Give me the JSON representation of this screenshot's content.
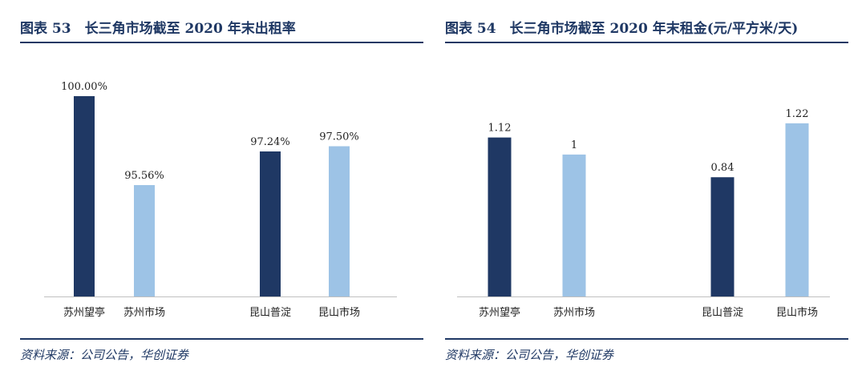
{
  "colors": {
    "title": "#1f3864",
    "dark_bar": "#1f3864",
    "light_bar": "#9dc3e6",
    "axis": "#bfbfbf"
  },
  "left": {
    "title": "图表 53　长三角市场截至 2020 年末出租率",
    "source": "资料来源：公司公告，华创证券"
  },
  "right": {
    "title": "图表 54　长三角市场截至 2020 年末租金(元/平方米/天)",
    "source": "资料来源：公司公告，华创证券"
  },
  "chart_data": [
    {
      "type": "bar",
      "title": "长三角市场截至 2020 年末出租率",
      "categories": [
        "苏州望亭",
        "苏州市场",
        "昆山普淀",
        "昆山市场"
      ],
      "values": [
        100.0,
        95.56,
        97.24,
        97.5
      ],
      "data_labels": [
        "100.00%",
        "95.56%",
        "97.24%",
        "97.50%"
      ],
      "bar_colors": [
        "dark",
        "light",
        "dark",
        "light"
      ],
      "ylim": [
        90,
        100
      ],
      "grid": false,
      "legend": "none"
    },
    {
      "type": "bar",
      "title": "长三角市场截至 2020 年末租金(元/平方米/天)",
      "categories": [
        "苏州望亭",
        "苏州市场",
        "昆山普淀",
        "昆山市场"
      ],
      "values": [
        1.12,
        1,
        0.84,
        1.22
      ],
      "data_labels": [
        "1.12",
        "1",
        "0.84",
        "1.22"
      ],
      "bar_colors": [
        "dark",
        "light",
        "dark",
        "light"
      ],
      "ylim": [
        0,
        1.4
      ],
      "grid": false,
      "legend": "none"
    }
  ]
}
